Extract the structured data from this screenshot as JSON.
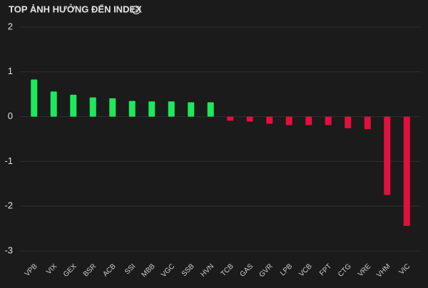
{
  "chart_data": {
    "type": "bar",
    "title": "TOP ẢNH HƯỞNG ĐẾN INDEX",
    "categories": [
      "VPB",
      "VIX",
      "GEX",
      "BSR",
      "ACB",
      "SSI",
      "MBB",
      "VGC",
      "SSB",
      "HVN",
      "TCB",
      "GAS",
      "GVR",
      "LPB",
      "VCB",
      "FPT",
      "CTG",
      "VRE",
      "VHM",
      "VIC"
    ],
    "values": [
      0.83,
      0.56,
      0.49,
      0.43,
      0.41,
      0.35,
      0.34,
      0.34,
      0.32,
      0.32,
      -0.09,
      -0.11,
      -0.16,
      -0.19,
      -0.19,
      -0.19,
      -0.26,
      -0.28,
      -1.75,
      -2.44
    ],
    "positive_color": "#1ee85c",
    "negative_color": "#e2103d",
    "ylim": [
      -3,
      2
    ],
    "yticks": [
      -3,
      -2,
      -1,
      0,
      1,
      2
    ],
    "grid": true
  }
}
